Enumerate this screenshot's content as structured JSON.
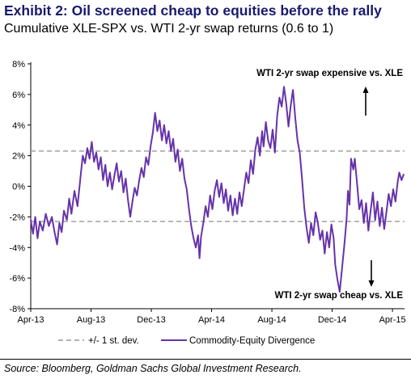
{
  "header": {
    "title": "Exhibit 2: Oil screened cheap to equities before the rally",
    "subtitle": "Cumulative XLE-SPX vs. WTI 2-yr swap returns (0.6 to 1)"
  },
  "footer": {
    "source": "Source: Bloomberg, Goldman Sachs Global Investment Research."
  },
  "colors": {
    "series": "#6633aa",
    "band": "#999999",
    "title": "#1a1a6e"
  },
  "chart_data": {
    "type": "line",
    "title": "Exhibit 2: Oil screened cheap to equities before the rally",
    "subtitle": "Cumulative XLE-SPX vs. WTI 2-yr swap returns (0.6 to 1)",
    "xlabel": "",
    "ylabel": "",
    "ylim": [
      -8,
      8
    ],
    "xlim": [
      0,
      24.8
    ],
    "x_unit": "months since Apr-13",
    "y_ticks": [
      -8,
      -6,
      -4,
      -2,
      0,
      2,
      4,
      6,
      8
    ],
    "y_tick_labels": [
      "-8%",
      "-6%",
      "-4%",
      "-2%",
      "0%",
      "2%",
      "4%",
      "6%",
      "8%"
    ],
    "x_ticks": [
      0,
      4,
      8,
      12,
      16,
      20,
      24
    ],
    "x_tick_labels": [
      "Apr-13",
      "Aug-13",
      "Dec-13",
      "Apr-14",
      "Aug-14",
      "Dec-14",
      "Apr-15"
    ],
    "grid": false,
    "legend_position": "bottom",
    "bands": [
      {
        "name": "+/- 1 st. dev.",
        "values": [
          2.3,
          -2.3
        ],
        "style": "dashed"
      }
    ],
    "series": [
      {
        "name": "Commodity-Equity Divergence",
        "style": "solid",
        "points": [
          [
            0.0,
            -2.2
          ],
          [
            0.15,
            -3.1
          ],
          [
            0.3,
            -2.0
          ],
          [
            0.45,
            -3.4
          ],
          [
            0.6,
            -2.3
          ],
          [
            0.8,
            -2.9
          ],
          [
            1.0,
            -1.8
          ],
          [
            1.2,
            -2.6
          ],
          [
            1.4,
            -2.0
          ],
          [
            1.6,
            -3.1
          ],
          [
            1.75,
            -3.8
          ],
          [
            1.9,
            -2.4
          ],
          [
            2.05,
            -3.0
          ],
          [
            2.2,
            -1.6
          ],
          [
            2.4,
            -2.2
          ],
          [
            2.55,
            -0.8
          ],
          [
            2.7,
            -1.8
          ],
          [
            2.9,
            -0.3
          ],
          [
            3.1,
            -1.3
          ],
          [
            3.3,
            0.6
          ],
          [
            3.45,
            2.0
          ],
          [
            3.6,
            1.5
          ],
          [
            3.75,
            2.5
          ],
          [
            3.9,
            1.8
          ],
          [
            4.05,
            2.9
          ],
          [
            4.2,
            1.6
          ],
          [
            4.35,
            2.2
          ],
          [
            4.5,
            1.1
          ],
          [
            4.65,
            1.9
          ],
          [
            4.8,
            0.4
          ],
          [
            4.95,
            1.4
          ],
          [
            5.1,
            0.0
          ],
          [
            5.25,
            0.9
          ],
          [
            5.4,
            -0.2
          ],
          [
            5.55,
            0.7
          ],
          [
            5.7,
            1.5
          ],
          [
            5.85,
            0.3
          ],
          [
            6.0,
            1.0
          ],
          [
            6.15,
            -0.4
          ],
          [
            6.3,
            0.5
          ],
          [
            6.45,
            -0.9
          ],
          [
            6.6,
            -2.0
          ],
          [
            6.75,
            -1.0
          ],
          [
            6.9,
            -0.1
          ],
          [
            7.05,
            -0.6
          ],
          [
            7.2,
            0.4
          ],
          [
            7.35,
            1.2
          ],
          [
            7.5,
            0.6
          ],
          [
            7.65,
            1.9
          ],
          [
            7.8,
            1.4
          ],
          [
            7.95,
            2.6
          ],
          [
            8.1,
            3.5
          ],
          [
            8.25,
            4.8
          ],
          [
            8.4,
            3.6
          ],
          [
            8.55,
            4.3
          ],
          [
            8.7,
            3.0
          ],
          [
            8.85,
            4.0
          ],
          [
            9.0,
            2.8
          ],
          [
            9.15,
            3.6
          ],
          [
            9.3,
            2.3
          ],
          [
            9.45,
            3.1
          ],
          [
            9.6,
            1.6
          ],
          [
            9.75,
            2.4
          ],
          [
            9.9,
            1.0
          ],
          [
            10.05,
            1.8
          ],
          [
            10.2,
            0.5
          ],
          [
            10.35,
            -0.2
          ],
          [
            10.5,
            -1.5
          ],
          [
            10.65,
            -2.6
          ],
          [
            10.8,
            -3.4
          ],
          [
            10.95,
            -4.0
          ],
          [
            11.1,
            -3.2
          ],
          [
            11.2,
            -4.7
          ],
          [
            11.3,
            -3.3
          ],
          [
            11.45,
            -2.4
          ],
          [
            11.6,
            -1.3
          ],
          [
            11.75,
            -2.0
          ],
          [
            11.9,
            -0.6
          ],
          [
            12.05,
            -1.5
          ],
          [
            12.2,
            -0.3
          ],
          [
            12.35,
            0.4
          ],
          [
            12.5,
            -0.7
          ],
          [
            12.65,
            0.2
          ],
          [
            12.8,
            -1.1
          ],
          [
            12.95,
            -0.2
          ],
          [
            13.1,
            -1.6
          ],
          [
            13.25,
            -0.6
          ],
          [
            13.4,
            -1.9
          ],
          [
            13.55,
            -0.8
          ],
          [
            13.7,
            -1.8
          ],
          [
            13.85,
            -0.4
          ],
          [
            14.0,
            -1.3
          ],
          [
            14.15,
            -0.2
          ],
          [
            14.3,
            0.9
          ],
          [
            14.45,
            0.2
          ],
          [
            14.6,
            1.7
          ],
          [
            14.75,
            0.8
          ],
          [
            14.9,
            2.4
          ],
          [
            15.05,
            3.2
          ],
          [
            15.2,
            2.0
          ],
          [
            15.35,
            3.6
          ],
          [
            15.45,
            2.6
          ],
          [
            15.6,
            4.2
          ],
          [
            15.75,
            3.0
          ],
          [
            15.9,
            2.5
          ],
          [
            16.05,
            3.7
          ],
          [
            16.2,
            2.2
          ],
          [
            16.35,
            4.6
          ],
          [
            16.5,
            5.8
          ],
          [
            16.65,
            5.2
          ],
          [
            16.8,
            6.5
          ],
          [
            16.95,
            5.4
          ],
          [
            17.1,
            3.9
          ],
          [
            17.25,
            5.3
          ],
          [
            17.4,
            6.3
          ],
          [
            17.55,
            4.5
          ],
          [
            17.7,
            3.0
          ],
          [
            17.85,
            2.2
          ],
          [
            18.0,
            0.5
          ],
          [
            18.15,
            -1.4
          ],
          [
            18.3,
            -2.7
          ],
          [
            18.45,
            -3.7
          ],
          [
            18.6,
            -2.4
          ],
          [
            18.75,
            -3.2
          ],
          [
            18.9,
            -1.7
          ],
          [
            19.05,
            -2.4
          ],
          [
            19.2,
            -3.5
          ],
          [
            19.35,
            -2.9
          ],
          [
            19.5,
            -4.4
          ],
          [
            19.65,
            -3.0
          ],
          [
            19.8,
            -4.0
          ],
          [
            19.95,
            -2.5
          ],
          [
            20.1,
            -3.4
          ],
          [
            20.2,
            -5.1
          ],
          [
            20.35,
            -6.1
          ],
          [
            20.5,
            -6.9
          ],
          [
            20.65,
            -5.4
          ],
          [
            20.8,
            -3.9
          ],
          [
            20.95,
            -2.2
          ],
          [
            21.05,
            -0.3
          ],
          [
            21.15,
            -1.2
          ],
          [
            21.25,
            1.8
          ],
          [
            21.4,
            1.1
          ],
          [
            21.5,
            1.8
          ],
          [
            21.65,
            0.2
          ],
          [
            21.8,
            -1.5
          ],
          [
            21.95,
            -0.9
          ],
          [
            22.1,
            -2.4
          ],
          [
            22.25,
            -1.1
          ],
          [
            22.4,
            -2.9
          ],
          [
            22.55,
            -1.6
          ],
          [
            22.7,
            -0.4
          ],
          [
            22.85,
            -2.2
          ],
          [
            23.0,
            -1.0
          ],
          [
            23.15,
            -2.6
          ],
          [
            23.3,
            -1.4
          ],
          [
            23.45,
            -2.8
          ],
          [
            23.6,
            -1.7
          ],
          [
            23.75,
            -0.5
          ],
          [
            23.9,
            -1.3
          ],
          [
            24.05,
            -0.2
          ],
          [
            24.2,
            -1.0
          ],
          [
            24.35,
            0.3
          ],
          [
            24.45,
            0.9
          ],
          [
            24.6,
            0.4
          ],
          [
            24.75,
            0.8
          ]
        ]
      }
    ],
    "annotations": [
      {
        "text": "WTI 2-yr swap expensive vs. XLE",
        "arrow": "up"
      },
      {
        "text": "WTI 2-yr swap cheap vs. XLE",
        "arrow": "down"
      }
    ],
    "legend": [
      {
        "label": "+/- 1 st. dev.",
        "style": "dashed"
      },
      {
        "label": "Commodity-Equity Divergence",
        "style": "solid"
      }
    ]
  }
}
